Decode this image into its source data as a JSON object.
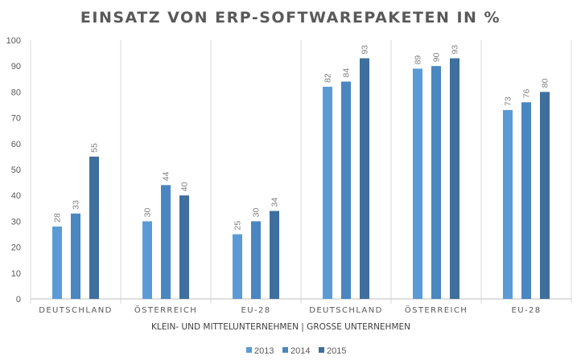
{
  "chart_data": {
    "type": "bar",
    "title": "EINSATZ VON ERP-SOFTWAREPAKETEN IN %",
    "xlabel": "KLEIN- UND MITTELUNTERNEHMEN |  GROSSE UNTERNEHMEN",
    "ylabel": "",
    "ylim": [
      0,
      100
    ],
    "yticks": [
      "0",
      "10",
      "20",
      "30",
      "40",
      "50",
      "60",
      "70",
      "80",
      "90",
      "100"
    ],
    "categories": [
      "DEUTSCHLAND",
      "ÖSTERREICH",
      "EU-28",
      "DEUTSCHLAND",
      "ÖSTERREICH",
      "EU-28"
    ],
    "series": [
      {
        "name": "2013",
        "color": "#5b9bd5",
        "values": [
          28,
          30,
          25,
          82,
          89,
          73
        ]
      },
      {
        "name": "2014",
        "color": "#4a86c0",
        "values": [
          33,
          44,
          30,
          84,
          90,
          76
        ]
      },
      {
        "name": "2015",
        "color": "#3f6f9c",
        "values": [
          55,
          40,
          34,
          93,
          93,
          80
        ]
      }
    ],
    "grid": "vertical category separators",
    "legend": "bottom"
  }
}
